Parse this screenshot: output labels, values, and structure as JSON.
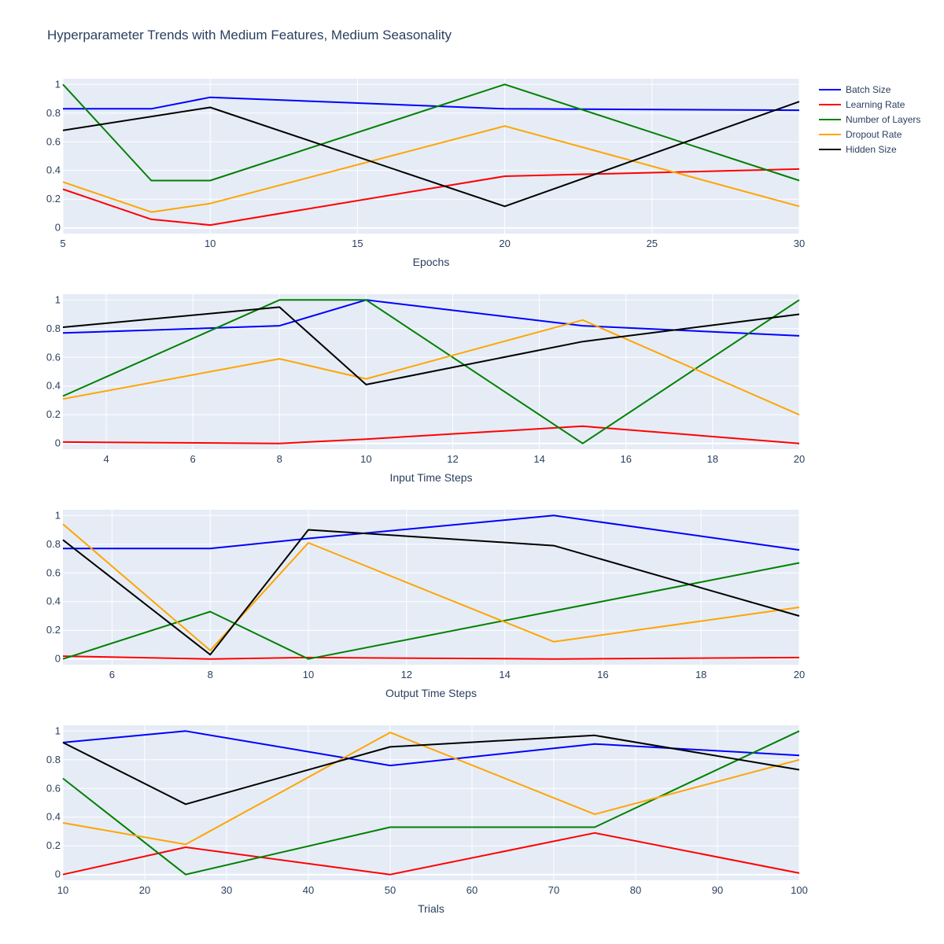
{
  "title": "Hyperparameter Trends with Medium Features, Medium Seasonality",
  "legend": {
    "position": "top-right",
    "items": [
      {
        "name": "Batch Size",
        "color": "#0000ff"
      },
      {
        "name": "Learning Rate",
        "color": "#ff0000"
      },
      {
        "name": "Number of Layers",
        "color": "#008000"
      },
      {
        "name": "Dropout Rate",
        "color": "#ffa500"
      },
      {
        "name": "Hidden Size",
        "color": "#000000"
      }
    ]
  },
  "chart_data": [
    {
      "type": "line",
      "xlabel": "Epochs",
      "xlim": [
        5,
        30
      ],
      "ylim": [
        -0.04,
        1.04
      ],
      "xticks": [
        5,
        10,
        15,
        20,
        25,
        30
      ],
      "yticks": [
        0,
        0.2,
        0.4,
        0.6,
        0.8,
        1
      ],
      "grid": true,
      "series": [
        {
          "name": "Batch Size",
          "color": "#0000ff",
          "x": [
            5,
            8,
            10,
            20,
            30
          ],
          "y": [
            0.83,
            0.83,
            0.91,
            0.83,
            0.82
          ]
        },
        {
          "name": "Learning Rate",
          "color": "#ff0000",
          "x": [
            5,
            8,
            10,
            20,
            30
          ],
          "y": [
            0.27,
            0.06,
            0.02,
            0.36,
            0.41
          ]
        },
        {
          "name": "Number of Layers",
          "color": "#008000",
          "x": [
            5,
            8,
            10,
            20,
            30
          ],
          "y": [
            1.0,
            0.33,
            0.33,
            1.0,
            0.33
          ]
        },
        {
          "name": "Dropout Rate",
          "color": "#ffa500",
          "x": [
            5,
            8,
            10,
            20,
            30
          ],
          "y": [
            0.32,
            0.11,
            0.17,
            0.71,
            0.15
          ]
        },
        {
          "name": "Hidden Size",
          "color": "#000000",
          "x": [
            5,
            10,
            20,
            30
          ],
          "y": [
            0.68,
            0.84,
            0.15,
            0.88
          ]
        }
      ]
    },
    {
      "type": "line",
      "xlabel": "Input Time Steps",
      "xlim": [
        3,
        20
      ],
      "ylim": [
        -0.04,
        1.04
      ],
      "xticks": [
        4,
        6,
        8,
        10,
        12,
        14,
        16,
        18,
        20
      ],
      "yticks": [
        0,
        0.2,
        0.4,
        0.6,
        0.8,
        1
      ],
      "grid": true,
      "series": [
        {
          "name": "Batch Size",
          "color": "#0000ff",
          "x": [
            3,
            8,
            10,
            15,
            20
          ],
          "y": [
            0.77,
            0.82,
            1.0,
            0.82,
            0.75
          ]
        },
        {
          "name": "Learning Rate",
          "color": "#ff0000",
          "x": [
            3,
            8,
            10,
            15,
            20
          ],
          "y": [
            0.01,
            0.0,
            0.03,
            0.12,
            0.0
          ]
        },
        {
          "name": "Number of Layers",
          "color": "#008000",
          "x": [
            3,
            8,
            10,
            15,
            20
          ],
          "y": [
            0.33,
            1.0,
            1.0,
            0.0,
            1.0
          ]
        },
        {
          "name": "Dropout Rate",
          "color": "#ffa500",
          "x": [
            3,
            8,
            10,
            15,
            20
          ],
          "y": [
            0.31,
            0.59,
            0.45,
            0.86,
            0.2
          ]
        },
        {
          "name": "Hidden Size",
          "color": "#000000",
          "x": [
            3,
            8,
            10,
            15,
            20
          ],
          "y": [
            0.81,
            0.95,
            0.41,
            0.71,
            0.9
          ]
        }
      ]
    },
    {
      "type": "line",
      "xlabel": "Output Time Steps",
      "xlim": [
        5,
        20
      ],
      "ylim": [
        -0.04,
        1.04
      ],
      "xticks": [
        6,
        8,
        10,
        12,
        14,
        16,
        18,
        20
      ],
      "yticks": [
        0,
        0.2,
        0.4,
        0.6,
        0.8,
        1
      ],
      "grid": true,
      "series": [
        {
          "name": "Batch Size",
          "color": "#0000ff",
          "x": [
            5,
            8,
            10,
            15,
            20
          ],
          "y": [
            0.77,
            0.77,
            0.84,
            1.0,
            0.76
          ]
        },
        {
          "name": "Learning Rate",
          "color": "#ff0000",
          "x": [
            5,
            8,
            10,
            15,
            20
          ],
          "y": [
            0.02,
            0.0,
            0.01,
            0.0,
            0.01
          ]
        },
        {
          "name": "Number of Layers",
          "color": "#008000",
          "x": [
            5,
            8,
            10,
            20
          ],
          "y": [
            0.0,
            0.33,
            0.0,
            0.67
          ]
        },
        {
          "name": "Dropout Rate",
          "color": "#ffa500",
          "x": [
            5,
            8,
            10,
            15,
            20
          ],
          "y": [
            0.94,
            0.06,
            0.81,
            0.12,
            0.36
          ]
        },
        {
          "name": "Hidden Size",
          "color": "#000000",
          "x": [
            5,
            8,
            10,
            15,
            20
          ],
          "y": [
            0.83,
            0.03,
            0.9,
            0.79,
            0.3
          ]
        }
      ]
    },
    {
      "type": "line",
      "xlabel": "Trials",
      "xlim": [
        10,
        100
      ],
      "ylim": [
        -0.04,
        1.04
      ],
      "xticks": [
        10,
        20,
        30,
        40,
        50,
        60,
        70,
        80,
        90,
        100
      ],
      "yticks": [
        0,
        0.2,
        0.4,
        0.6,
        0.8,
        1
      ],
      "grid": true,
      "series": [
        {
          "name": "Batch Size",
          "color": "#0000ff",
          "x": [
            10,
            25,
            50,
            75,
            100
          ],
          "y": [
            0.92,
            1.0,
            0.76,
            0.91,
            0.83
          ]
        },
        {
          "name": "Learning Rate",
          "color": "#ff0000",
          "x": [
            10,
            25,
            50,
            75,
            100
          ],
          "y": [
            0.0,
            0.19,
            0.0,
            0.29,
            0.01
          ]
        },
        {
          "name": "Number of Layers",
          "color": "#008000",
          "x": [
            10,
            25,
            50,
            75,
            100
          ],
          "y": [
            0.67,
            0.0,
            0.33,
            0.33,
            1.0
          ]
        },
        {
          "name": "Dropout Rate",
          "color": "#ffa500",
          "x": [
            10,
            25,
            50,
            75,
            100
          ],
          "y": [
            0.36,
            0.21,
            0.99,
            0.42,
            0.8
          ]
        },
        {
          "name": "Hidden Size",
          "color": "#000000",
          "x": [
            10,
            25,
            50,
            75,
            100
          ],
          "y": [
            0.92,
            0.49,
            0.89,
            0.97,
            0.73
          ]
        }
      ]
    }
  ]
}
